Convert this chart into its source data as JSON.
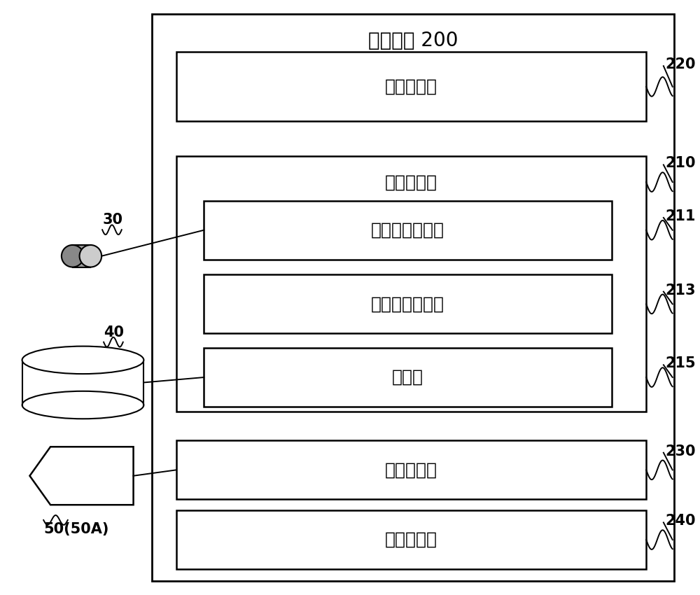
{
  "title": "控制部： 200",
  "box_220_label": "图像处理部",
  "box_210_label": "通道选择部",
  "box_211_label": "相机图像获取部",
  "box_213_label": "目标位置确定部",
  "box_215_label": "核对部",
  "box_230_label": "显示控制部",
  "box_240_label": "摄像控制部",
  "label_220": "220",
  "label_210": "210",
  "label_211": "211",
  "label_213": "213",
  "label_215": "215",
  "label_230": "230",
  "label_240": "240",
  "label_30": "30",
  "label_40": "40",
  "label_50": "50(50A)",
  "bg_color": "#ffffff",
  "box_color": "#000000",
  "text_color": "#000000",
  "font_size_title": 20,
  "font_size_box": 18,
  "font_size_label": 15
}
